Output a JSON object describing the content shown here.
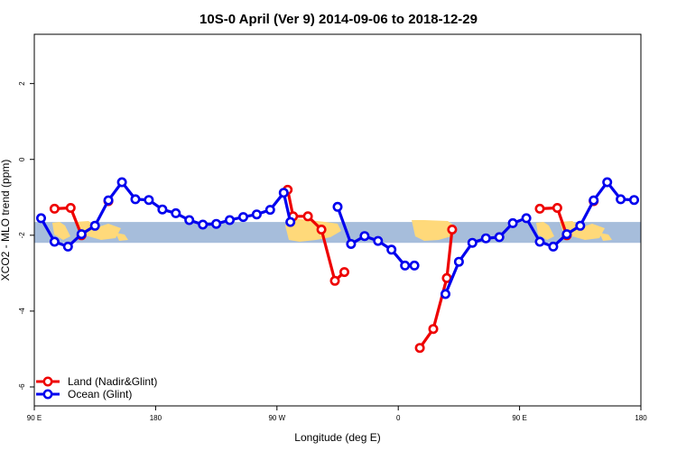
{
  "chart_data": {
    "type": "line",
    "title": "10S-0 April (Ver 9)   2014-09-06 to 2018-12-29",
    "xlabel": "Longitude (deg E)",
    "ylabel": "XCO2 - MLO trend (ppm)",
    "xlim": [
      90,
      540
    ],
    "ylim": [
      -6.5,
      3.3
    ],
    "x_ticks": [
      {
        "value": 90,
        "label": "90 E"
      },
      {
        "value": 180,
        "label": "180"
      },
      {
        "value": 270,
        "label": "90 W"
      },
      {
        "value": 360,
        "label": "0"
      },
      {
        "value": 450,
        "label": "90 E"
      },
      {
        "value": 540,
        "label": "180"
      }
    ],
    "y_ticks": [
      {
        "value": -6,
        "label": "-6"
      },
      {
        "value": -4,
        "label": "-4"
      },
      {
        "value": -2,
        "label": "-2"
      },
      {
        "value": 0,
        "label": "0"
      },
      {
        "value": 2,
        "label": "2"
      }
    ],
    "band": {
      "ymin": -2.2,
      "ymax": -1.65,
      "color": "#a6bddb"
    },
    "land_color": "#ffd97a",
    "legend_position": "bottom-left",
    "series": [
      {
        "name": "Land (Nadir&Glint)",
        "color": "#ee0000",
        "segments": [
          [
            [
              105,
              -1.3
            ],
            [
              117,
              -1.28
            ],
            [
              125,
              -2.0
            ]
          ],
          [
            [
              145,
              -1.1
            ]
          ],
          [
            [
              278,
              -0.8
            ],
            [
              282,
              -1.5
            ],
            [
              293,
              -1.5
            ],
            [
              303,
              -1.85
            ],
            [
              313,
              -3.2
            ],
            [
              320,
              -2.97
            ]
          ],
          [
            [
              376,
              -4.97
            ],
            [
              386,
              -4.47
            ],
            [
              396,
              -3.13
            ],
            [
              400,
              -1.85
            ]
          ],
          [
            [
              465,
              -1.3
            ],
            [
              478,
              -1.28
            ],
            [
              485,
              -2.0
            ]
          ],
          [
            [
              505,
              -1.1
            ]
          ]
        ]
      },
      {
        "name": "Ocean (Glint)",
        "color": "#0000ee",
        "segments": [
          [
            [
              95,
              -1.55
            ],
            [
              105,
              -2.17
            ],
            [
              115,
              -2.3
            ],
            [
              125,
              -1.97
            ],
            [
              135,
              -1.75
            ],
            [
              145,
              -1.08
            ],
            [
              155,
              -0.6
            ],
            [
              165,
              -1.05
            ],
            [
              175,
              -1.07
            ],
            [
              185,
              -1.32
            ],
            [
              195,
              -1.42
            ],
            [
              205,
              -1.6
            ],
            [
              215,
              -1.72
            ],
            [
              225,
              -1.7
            ],
            [
              235,
              -1.6
            ],
            [
              245,
              -1.52
            ],
            [
              255,
              -1.45
            ],
            [
              265,
              -1.33
            ],
            [
              275,
              -0.88
            ],
            [
              280,
              -1.65
            ]
          ],
          [
            [
              315,
              -1.25
            ],
            [
              325,
              -2.23
            ],
            [
              335,
              -2.02
            ],
            [
              345,
              -2.15
            ],
            [
              355,
              -2.38
            ],
            [
              365,
              -2.8
            ],
            [
              372,
              -2.8
            ]
          ],
          [
            [
              395,
              -3.55
            ],
            [
              405,
              -2.7
            ],
            [
              415,
              -2.2
            ],
            [
              425,
              -2.08
            ],
            [
              435,
              -2.05
            ],
            [
              445,
              -1.68
            ],
            [
              455,
              -1.55
            ],
            [
              465,
              -2.17
            ],
            [
              475,
              -2.3
            ],
            [
              485,
              -1.97
            ],
            [
              495,
              -1.75
            ],
            [
              505,
              -1.08
            ],
            [
              515,
              -0.6
            ],
            [
              525,
              -1.05
            ],
            [
              535,
              -1.07
            ]
          ]
        ]
      }
    ]
  }
}
